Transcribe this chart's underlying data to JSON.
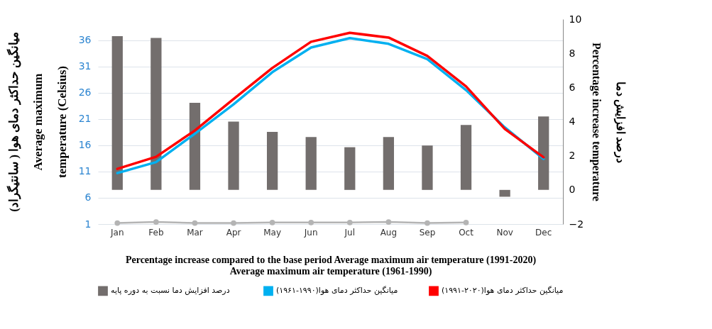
{
  "chart_data": {
    "type": "bar",
    "categories": [
      "Jan",
      "Feb",
      "Mar",
      "Apr",
      "May",
      "Jun",
      "Jul",
      "Aug",
      "Sep",
      "Oct",
      "Nov",
      "Dec"
    ],
    "series": [
      {
        "name": "درصد افزایش  دما نسبت به دوره پایه",
        "axis": "y2",
        "color": "#736e6d",
        "values": [
          9.0,
          8.9,
          5.1,
          4.0,
          3.4,
          3.1,
          2.5,
          3.1,
          2.6,
          3.8,
          -0.4,
          4.3
        ]
      },
      {
        "name": "میانگین حداکثر دمای هوا(۱۹۹۰-۱۹۶۱)",
        "type": "line",
        "color": "#00b0f0",
        "values": [
          10.7,
          12.8,
          18.2,
          23.8,
          29.9,
          34.6,
          36.4,
          35.3,
          32.4,
          26.5,
          19.4,
          13.4
        ]
      },
      {
        "name": "میانگین حداکثر دمای هوا(۲۰۲۰-۱۹۹۱)",
        "type": "line",
        "color": "#ff0000",
        "values": [
          11.5,
          13.8,
          18.8,
          24.8,
          30.7,
          35.7,
          37.4,
          36.5,
          33.0,
          27.2,
          19.1,
          13.7
        ]
      },
      {
        "type": "line",
        "color": "#b4b4b4",
        "marker": "circle",
        "values": [
          1.2,
          1.4,
          1.2,
          1.2,
          1.3,
          1.3,
          1.3,
          1.4,
          1.2,
          1.3,
          null,
          null
        ]
      }
    ],
    "ylim": [
      1,
      40
    ],
    "yticks": [
      1,
      6,
      11,
      16,
      21,
      26,
      31,
      36
    ],
    "y2lim": [
      -2,
      10
    ],
    "y2ticks": [
      -2,
      0,
      2,
      4,
      6,
      8,
      10
    ],
    "ylabel": "Average maximum temperature (Celsius)",
    "y2label": "Percentage increase  temperature",
    "xlabel": "Percentage increase compared to the base period  Average maximum air temperature (1991-2020)",
    "annotations": [
      "میانگین حداکثر دمای هوا ( سانتیگراد)",
      "درصد افزایش دما",
      "Average maximum air temperature (1961-1990)"
    ],
    "grid": "y",
    "legend": "bottom"
  }
}
